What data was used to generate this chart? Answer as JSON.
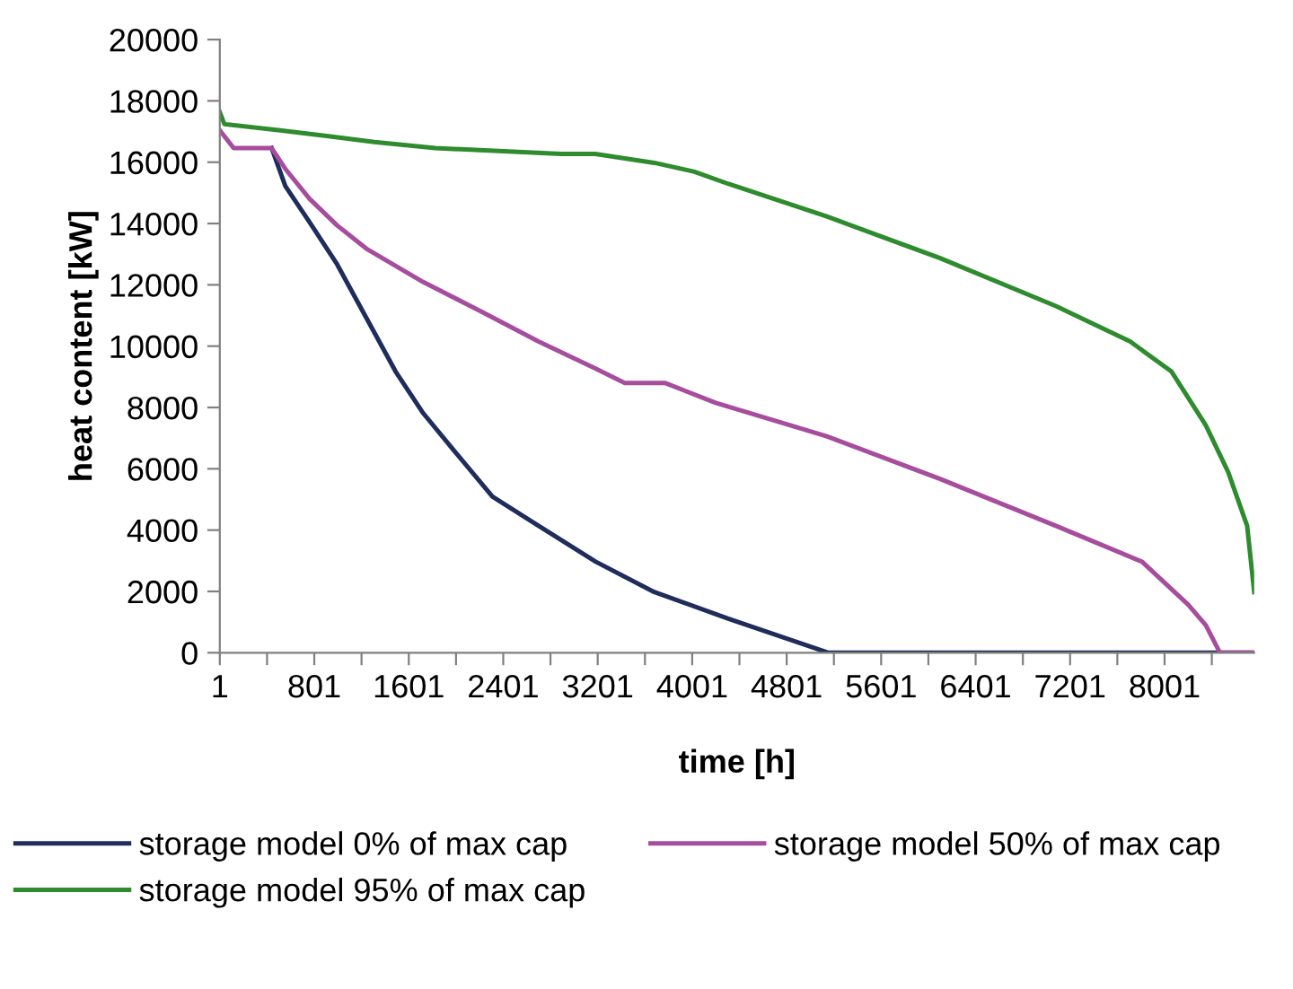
{
  "chart_data": {
    "type": "line",
    "xlabel": "time [h]",
    "ylabel": "heat content [kW]",
    "xlim": [
      1,
      8760
    ],
    "ylim": [
      0,
      20000
    ],
    "xticks": [
      1,
      {
        "value": 401,
        "label": null
      },
      801,
      {
        "value": 1201,
        "label": null
      },
      1601,
      {
        "value": 2001,
        "label": null
      },
      2401,
      {
        "value": 2801,
        "label": null
      },
      3201,
      {
        "value": 3601,
        "label": null
      },
      4001,
      {
        "value": 4401,
        "label": null
      },
      4801,
      {
        "value": 5201,
        "label": null
      },
      5601,
      {
        "value": 6001,
        "label": null
      },
      6401,
      {
        "value": 6801,
        "label": null
      },
      7201,
      {
        "value": 7601,
        "label": null
      },
      8001,
      {
        "value": 8401,
        "label": null
      }
    ],
    "yticks": [
      0,
      2000,
      4000,
      6000,
      8000,
      10000,
      12000,
      14000,
      16000,
      18000,
      20000
    ],
    "grid": false,
    "legend": "bottom",
    "marker": "none",
    "line_style": "solid",
    "series": [
      {
        "name": "storage model 0% of max cap",
        "color": "#1f2d5c",
        "x": [
          440,
          556,
          760,
          994,
          1242,
          1490,
          1724,
          1972,
          2310,
          2700,
          3184,
          3680,
          4307,
          5155,
          8760
        ],
        "values": [
          16460,
          15220,
          14050,
          12670,
          10920,
          9170,
          7810,
          6650,
          5090,
          4140,
          2970,
          1980,
          1110,
          0,
          0
        ]
      },
      {
        "name": "storage model 50% of max cap",
        "color": "#a64d9e",
        "x": [
          1,
          118,
          440,
          556,
          760,
          994,
          1242,
          1724,
          2220,
          2700,
          3184,
          3430,
          3770,
          4200,
          5140,
          6100,
          7080,
          7810,
          8200,
          8350,
          8470,
          8760
        ],
        "values": [
          17040,
          16460,
          16460,
          15780,
          14810,
          13940,
          13180,
          12090,
          11120,
          10150,
          9270,
          8800,
          8800,
          8150,
          7060,
          5670,
          4140,
          2970,
          1570,
          900,
          0,
          0
        ]
      },
      {
        "name": "storage model 95% of max cap",
        "color": "#2e8b2e",
        "x": [
          1,
          40,
          512,
          921,
          1310,
          1826,
          2890,
          3180,
          3680,
          4020,
          4310,
          5140,
          6100,
          7080,
          7710,
          8060,
          8350,
          8540,
          8700,
          8760
        ],
        "values": [
          17630,
          17240,
          17040,
          16850,
          16660,
          16460,
          16270,
          16270,
          15980,
          15690,
          15290,
          14230,
          12870,
          11310,
          10150,
          9170,
          7420,
          5890,
          4140,
          1980
        ]
      }
    ]
  }
}
